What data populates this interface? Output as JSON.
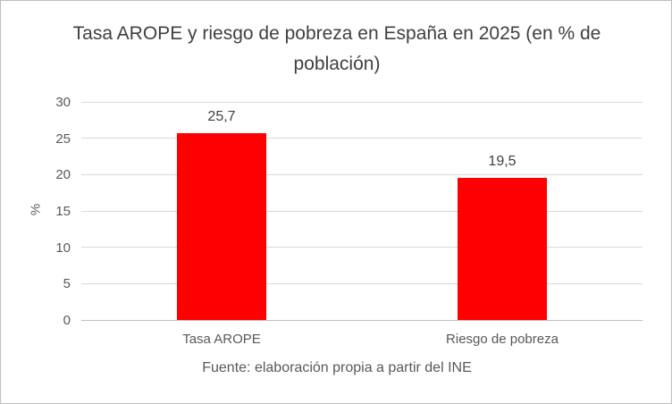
{
  "chart_data": {
    "type": "bar",
    "title": "Tasa AROPE y riesgo de pobreza en España en 2025 (en % de población)",
    "categories": [
      "Tasa AROPE",
      "Riesgo de pobreza"
    ],
    "values": [
      25.7,
      19.5
    ],
    "value_labels": [
      "25,7",
      "19,5"
    ],
    "xlabel": "",
    "ylabel": "%",
    "ylim": [
      0,
      30
    ],
    "yticks": [
      0,
      5,
      10,
      15,
      20,
      25,
      30
    ],
    "grid": true,
    "legend": false,
    "bar_color": "#ff0000",
    "caption": "Fuente: elaboración propia a partir del INE"
  }
}
